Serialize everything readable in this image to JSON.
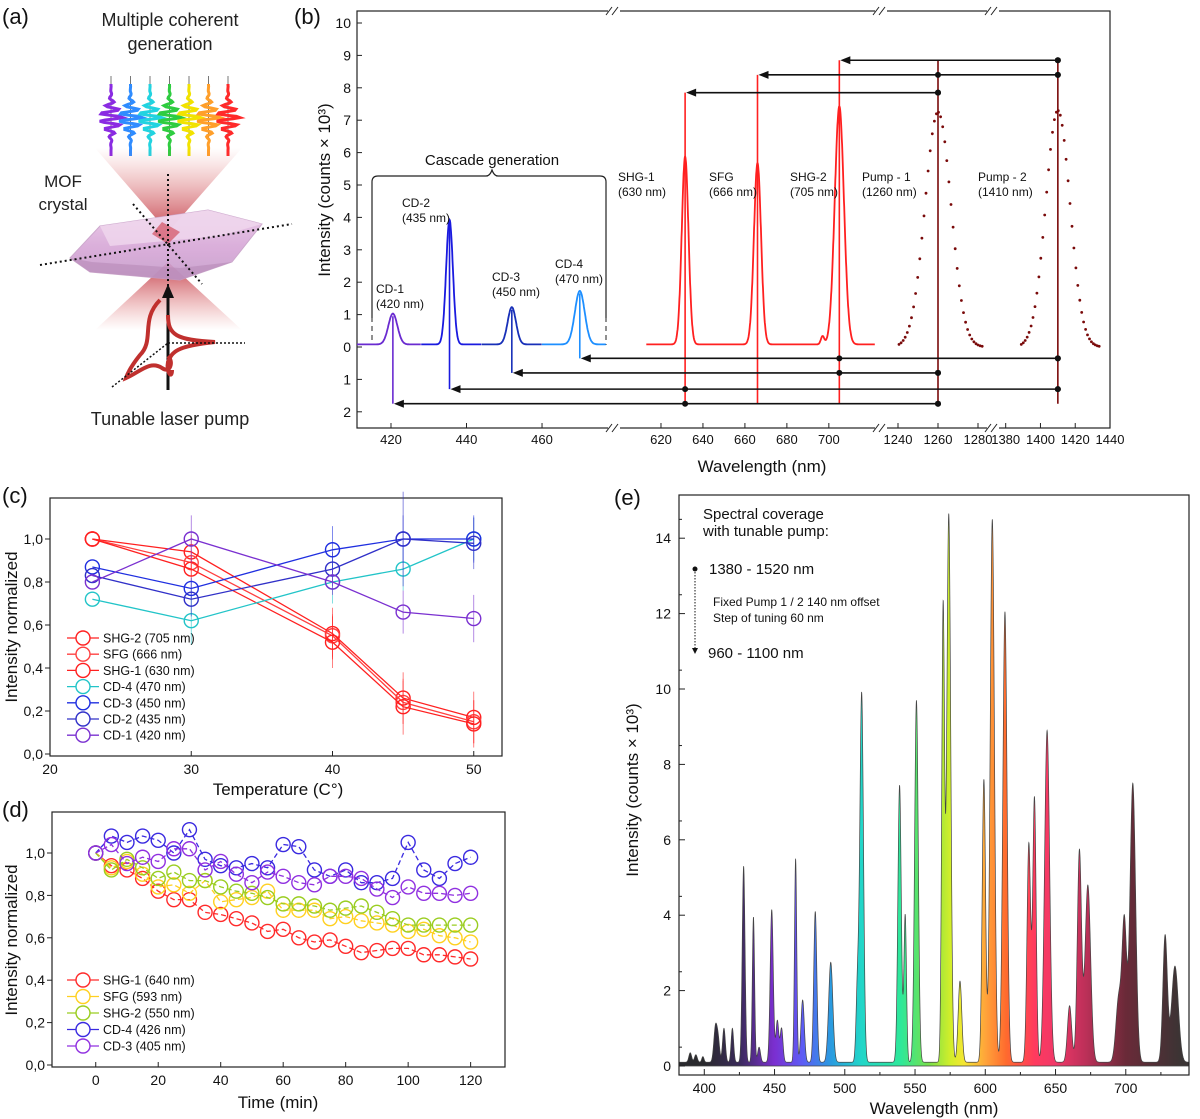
{
  "figure": {
    "panel_a": {
      "letter": "(a)",
      "title_line1": "Multiple coherent",
      "title_line2": "generation",
      "crystal_line1": "MOF",
      "crystal_line2": "crystal",
      "pump_label": "Tunable laser pump",
      "wave_colors": [
        "#8a2be2",
        "#2f8cff",
        "#22d3e0",
        "#2ecc40",
        "#f2e200",
        "#ff9f2a",
        "#ff2a2a"
      ]
    },
    "panel_b": {
      "letter": "(b)"
    },
    "panel_c": {
      "letter": "(c)"
    },
    "panel_d": {
      "letter": "(d)"
    },
    "panel_e": {
      "letter": "(e)"
    }
  },
  "chart_data": [
    {
      "id": "b",
      "type": "line",
      "title": "",
      "xlabel": "Wavelength (nm)",
      "ylabel": "Intensity (counts × 10³)",
      "ylim": [
        -2.5,
        10.5
      ],
      "y_ticks_upper": [
        "0",
        "1",
        "2",
        "3",
        "4",
        "5",
        "6",
        "7",
        "8",
        "9",
        "10"
      ],
      "y_ticks_lower": [
        "1",
        "2"
      ],
      "x_segments": [
        {
          "range": [
            411,
            478
          ],
          "ticks": [
            420,
            440,
            460
          ]
        },
        {
          "range": [
            610,
            722
          ],
          "ticks": [
            620,
            640,
            660,
            680,
            700
          ]
        },
        {
          "range": [
            1235,
            1286
          ],
          "ticks": [
            1240,
            1260,
            1280
          ]
        },
        {
          "range": [
            1375,
            1440
          ],
          "ticks": [
            1380,
            1400,
            1420,
            1440
          ]
        }
      ],
      "bracket_label": "Cascade generation",
      "series": [
        {
          "name": "CD-1",
          "label_line1": "CD-1",
          "label_line2": "(420 nm)",
          "center": 420.5,
          "peak": 0.95,
          "width": 1.2,
          "color": "#6a2bd0",
          "drop": 1.75
        },
        {
          "name": "CD-2",
          "label_line1": "CD-2",
          "label_line2": "(435 nm)",
          "center": 435.5,
          "peak": 3.85,
          "width": 0.9,
          "color": "#1a1adf",
          "drop": 1.3
        },
        {
          "name": "CD-3",
          "label_line1": "CD-3",
          "label_line2": "(450 nm)",
          "center": 452,
          "peak": 1.15,
          "width": 1.1,
          "color": "#1830b8",
          "drop": 0.8
        },
        {
          "name": "CD-4",
          "label_line1": "CD-4",
          "label_line2": "(470 nm)",
          "center": 470,
          "peak": 1.65,
          "width": 1.3,
          "color": "#1e8fff",
          "drop": 0.35
        },
        {
          "name": "SHG-1",
          "label_line1": "SHG-1",
          "label_line2": "(630 nm)",
          "center": 631.5,
          "peak": 5.8,
          "width": 1.6,
          "color": "#ff2020",
          "rise": 7.85
        },
        {
          "name": "SFG",
          "label_line1": "SFG",
          "label_line2": "(666 nm)",
          "center": 666,
          "peak": 5.6,
          "width": 1.7,
          "color": "#ff2020",
          "rise": 8.4
        },
        {
          "name": "SHG-2",
          "label_line1": "SHG-2",
          "label_line2": "(705 nm)",
          "center": 705,
          "peak": 7.35,
          "width": 2.2,
          "color": "#ff2020",
          "rise": 8.85
        },
        {
          "name": "Pump - 1",
          "label_line1": "Pump - 1",
          "label_line2": "(1260 nm)",
          "center": 1260,
          "peak": 7.25,
          "width": 6.5,
          "color": "#7a0a0a",
          "dotted": true
        },
        {
          "name": "Pump - 2",
          "label_line1": "Pump - 2",
          "label_line2": "(1410 nm)",
          "center": 1410,
          "peak": 7.3,
          "width": 7.0,
          "color": "#7a0a0a",
          "dotted": true
        }
      ],
      "arrows": [
        {
          "from": 1260,
          "to": 631.5,
          "y": 7.85,
          "dots": [
            1260
          ]
        },
        {
          "from": 1410,
          "to": 666,
          "y": 8.4,
          "dots": [
            1260,
            1410
          ]
        },
        {
          "from": 1410,
          "to": 705,
          "y": 8.85,
          "dots": [
            1410
          ]
        },
        {
          "from": 1410,
          "to": 470,
          "y": -0.35,
          "dots": [
            705,
            1410
          ]
        },
        {
          "from": 1260,
          "to": 452,
          "y": -0.8,
          "dots": [
            705,
            1260
          ]
        },
        {
          "from": 1410,
          "to": 435.5,
          "y": -1.3,
          "dots": [
            631.5,
            1410
          ]
        },
        {
          "from": 1260,
          "to": 420.5,
          "y": -1.75,
          "dots": [
            631.5,
            1260
          ]
        }
      ]
    },
    {
      "id": "c",
      "type": "line",
      "xlabel": "Temperature (C°)",
      "ylabel": "Intensity normalized",
      "xlim": [
        20,
        52
      ],
      "ylim": [
        0,
        1.1
      ],
      "x_ticks": [
        "20",
        "30",
        "40",
        "50"
      ],
      "y_ticks": [
        "0,0",
        "0,2",
        "0,4",
        "0,6",
        "0,8",
        "1,0"
      ],
      "x": [
        23,
        30,
        40,
        45,
        50
      ],
      "legend_position": "lower-left",
      "series": [
        {
          "name": "SHG-2 (705 nm)",
          "color": "#ff2020",
          "values": [
            1.0,
            0.94,
            0.56,
            0.26,
            0.17
          ],
          "err": [
            0,
            0.08,
            0.12,
            0.12,
            0.12
          ]
        },
        {
          "name": "SFG (666 nm)",
          "color": "#ff4040",
          "values": [
            1.0,
            0.89,
            0.55,
            0.24,
            0.15
          ],
          "err": [
            0,
            0.06,
            0.1,
            0.1,
            0.1
          ]
        },
        {
          "name": "SHG-1 (630 nm)",
          "color": "#ff2020",
          "values": [
            1.0,
            0.86,
            0.52,
            0.22,
            0.14
          ],
          "err": [
            0,
            0.06,
            0.12,
            0.13,
            0.11
          ]
        },
        {
          "name": "CD-4 (470 nm)",
          "color": "#22c4c8",
          "values": [
            0.72,
            0.62,
            0.8,
            0.86,
            1.0
          ],
          "err": [
            0,
            0.11,
            0.1,
            0.1,
            0.1
          ]
        },
        {
          "name": "CD-3 (450 nm)",
          "color": "#1f2fe0",
          "values": [
            0.87,
            0.77,
            0.95,
            1.0,
            1.0
          ],
          "err": [
            0,
            0.05,
            0.11,
            0.11,
            0.11
          ]
        },
        {
          "name": "CD-2 (435 nm)",
          "color": "#3030c8",
          "values": [
            0.83,
            0.72,
            0.86,
            1.0,
            0.98
          ],
          "err": [
            0,
            0.08,
            0.08,
            0.22,
            0.12
          ]
        },
        {
          "name": "CD-1 (420 nm)",
          "color": "#7a30d0",
          "values": [
            0.8,
            1.0,
            0.8,
            0.66,
            0.63
          ],
          "err": [
            0,
            0.11,
            0.06,
            0.1,
            0.11
          ]
        }
      ]
    },
    {
      "id": "d",
      "type": "line",
      "xlabel": "Time (min)",
      "ylabel": "Intensity normalized",
      "xlim": [
        -14,
        131
      ],
      "ylim": [
        0,
        1.1
      ],
      "x_ticks": [
        "0",
        "20",
        "40",
        "60",
        "80",
        "100",
        "120"
      ],
      "y_ticks": [
        "0,0",
        "0,2",
        "0,4",
        "0,6",
        "0,8",
        "1,0"
      ],
      "x": [
        0,
        5,
        10,
        15,
        20,
        25,
        30,
        35,
        40,
        45,
        50,
        55,
        60,
        65,
        70,
        75,
        80,
        85,
        90,
        95,
        100,
        105,
        110,
        115,
        120
      ],
      "legend_position": "lower-left",
      "series": [
        {
          "name": "SHG-1 (640 nm)",
          "color": "#ff2a2a",
          "values": [
            1.0,
            0.94,
            0.92,
            0.88,
            0.82,
            0.78,
            0.78,
            0.72,
            0.71,
            0.69,
            0.67,
            0.63,
            0.64,
            0.6,
            0.58,
            0.59,
            0.56,
            0.53,
            0.54,
            0.55,
            0.55,
            0.52,
            0.52,
            0.51,
            0.5
          ]
        },
        {
          "name": "SFG (593 nm)",
          "color": "#ffd020",
          "values": [
            1.0,
            0.93,
            0.96,
            0.9,
            0.84,
            0.85,
            0.81,
            0.87,
            0.77,
            0.78,
            0.79,
            0.82,
            0.73,
            0.73,
            0.73,
            0.69,
            0.7,
            0.68,
            0.67,
            0.66,
            0.63,
            0.64,
            0.61,
            0.6,
            0.58
          ]
        },
        {
          "name": "SHG-2 (550 nm)",
          "color": "#9acd20",
          "values": [
            1.0,
            0.92,
            0.97,
            0.93,
            0.88,
            0.91,
            0.87,
            0.87,
            0.84,
            0.82,
            0.81,
            0.79,
            0.76,
            0.76,
            0.75,
            0.73,
            0.74,
            0.75,
            0.72,
            0.69,
            0.66,
            0.66,
            0.66,
            0.66,
            0.66
          ]
        },
        {
          "name": "CD-4 (426 nm)",
          "color": "#3a2ae0",
          "values": [
            1.0,
            1.08,
            1.05,
            1.08,
            1.06,
            1.0,
            1.11,
            0.97,
            0.94,
            0.93,
            0.95,
            0.93,
            1.04,
            1.03,
            0.92,
            0.89,
            0.92,
            0.86,
            0.86,
            0.88,
            1.05,
            0.92,
            0.88,
            0.95,
            0.98
          ]
        },
        {
          "name": "CD-3 (405 nm)",
          "color": "#9030e0",
          "values": [
            1.0,
            1.04,
            0.95,
            0.98,
            0.96,
            1.02,
            1.02,
            0.92,
            0.96,
            0.9,
            0.86,
            0.91,
            0.89,
            0.86,
            0.85,
            0.89,
            0.89,
            0.88,
            0.83,
            0.79,
            0.84,
            0.81,
            0.81,
            0.8,
            0.81
          ]
        }
      ]
    },
    {
      "id": "e",
      "type": "area",
      "xlabel": "Wavelength (nm)",
      "ylabel": "Intensity (counts × 10³)",
      "xlim": [
        382,
        745
      ],
      "ylim": [
        0,
        15
      ],
      "x_ticks": [
        "400",
        "450",
        "500",
        "550",
        "600",
        "650",
        "700"
      ],
      "y_ticks": [
        "0",
        "2",
        "4",
        "6",
        "8",
        "10",
        "12",
        "14"
      ],
      "annotations": {
        "line1": "Spectral coverage",
        "line2": "with tunable pump:",
        "range_top": "1380 - 1520 nm",
        "detail1": "Fixed Pump 1 / 2  140 nm offset",
        "detail2": "Step of tuning 60 nm",
        "range_bottom": "960 - 1100 nm"
      },
      "baseline": 0.1,
      "peaks": [
        {
          "x": 390,
          "h": 0.25,
          "w": 1.0
        },
        {
          "x": 394,
          "h": 0.2,
          "w": 1.0
        },
        {
          "x": 399,
          "h": 0.15,
          "w": 0.8
        },
        {
          "x": 408,
          "h": 0.95,
          "w": 1.2
        },
        {
          "x": 410,
          "h": 0.5,
          "w": 1.0
        },
        {
          "x": 414,
          "h": 0.9,
          "w": 1.0
        },
        {
          "x": 420,
          "h": 0.9,
          "w": 0.9
        },
        {
          "x": 428,
          "h": 5.2,
          "w": 1.0
        },
        {
          "x": 435,
          "h": 3.85,
          "w": 0.8
        },
        {
          "x": 439,
          "h": 0.4,
          "w": 1.0
        },
        {
          "x": 448,
          "h": 4.05,
          "w": 1.1
        },
        {
          "x": 452,
          "h": 1.1,
          "w": 1.0
        },
        {
          "x": 455,
          "h": 0.9,
          "w": 1.0
        },
        {
          "x": 465,
          "h": 5.4,
          "w": 0.8
        },
        {
          "x": 470,
          "h": 1.65,
          "w": 1.2
        },
        {
          "x": 479,
          "h": 4.0,
          "w": 1.1
        },
        {
          "x": 490,
          "h": 2.65,
          "w": 1.5
        },
        {
          "x": 509,
          "h": 1.9,
          "w": 1.0
        },
        {
          "x": 512,
          "h": 9.8,
          "w": 1.3
        },
        {
          "x": 539,
          "h": 7.35,
          "w": 1.2
        },
        {
          "x": 543,
          "h": 3.9,
          "w": 0.9
        },
        {
          "x": 551,
          "h": 9.6,
          "w": 1.3
        },
        {
          "x": 570,
          "h": 12.0,
          "w": 1.0
        },
        {
          "x": 574,
          "h": 14.55,
          "w": 1.4
        },
        {
          "x": 582,
          "h": 2.15,
          "w": 1.3
        },
        {
          "x": 599,
          "h": 7.5,
          "w": 1.2
        },
        {
          "x": 605,
          "h": 14.4,
          "w": 1.5
        },
        {
          "x": 614,
          "h": 11.95,
          "w": 1.5
        },
        {
          "x": 631,
          "h": 5.8,
          "w": 1.3
        },
        {
          "x": 635,
          "h": 7.0,
          "w": 1.2
        },
        {
          "x": 644,
          "h": 8.8,
          "w": 1.8
        },
        {
          "x": 660,
          "h": 1.5,
          "w": 1.5
        },
        {
          "x": 667,
          "h": 5.6,
          "w": 1.5
        },
        {
          "x": 673,
          "h": 4.7,
          "w": 2.0
        },
        {
          "x": 695,
          "h": 1.7,
          "w": 2.0
        },
        {
          "x": 699,
          "h": 3.6,
          "w": 1.6
        },
        {
          "x": 705,
          "h": 7.4,
          "w": 2.0
        },
        {
          "x": 728,
          "h": 3.35,
          "w": 1.6
        },
        {
          "x": 735,
          "h": 2.55,
          "w": 2.4
        }
      ],
      "gradient_stops": [
        {
          "x": 400,
          "color": "#2a2a2e"
        },
        {
          "x": 425,
          "color": "#3a2a5a"
        },
        {
          "x": 450,
          "color": "#7b2fd0"
        },
        {
          "x": 470,
          "color": "#5d5cf5"
        },
        {
          "x": 490,
          "color": "#2a9be0"
        },
        {
          "x": 512,
          "color": "#22d6c8"
        },
        {
          "x": 540,
          "color": "#2ee89a"
        },
        {
          "x": 560,
          "color": "#78e04a"
        },
        {
          "x": 575,
          "color": "#d2ee2a"
        },
        {
          "x": 585,
          "color": "#f4e632"
        },
        {
          "x": 600,
          "color": "#ffa43a"
        },
        {
          "x": 615,
          "color": "#ff6a2e"
        },
        {
          "x": 635,
          "color": "#ff3a5e"
        },
        {
          "x": 650,
          "color": "#f03868"
        },
        {
          "x": 670,
          "color": "#c0305a"
        },
        {
          "x": 700,
          "color": "#6a2a38"
        },
        {
          "x": 740,
          "color": "#3a3434"
        }
      ]
    }
  ]
}
